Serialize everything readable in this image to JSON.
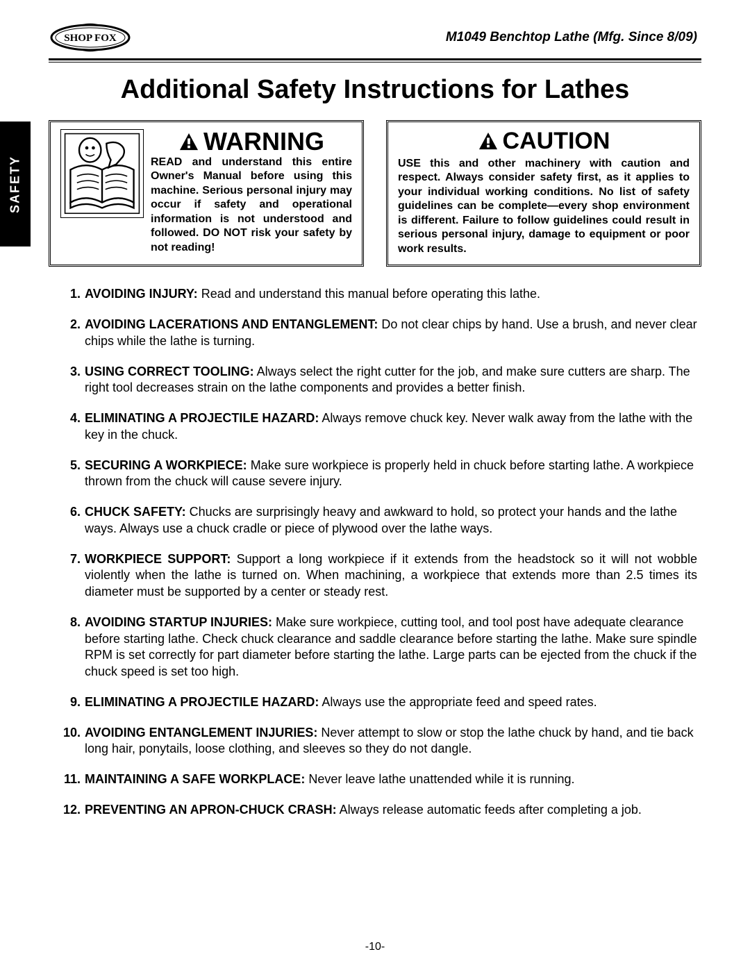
{
  "header": {
    "brand": "SHOP FOX",
    "product_line": "M1049 Benchtop Lathe (Mfg. Since 8/09)"
  },
  "side_tab": "SAFETY",
  "title": "Additional Safety Instructions for Lathes",
  "warning_box": {
    "heading": "WARNING",
    "body": "READ and understand this entire Owner's Manual before using this machine. Serious personal injury may occur if safety and operational information is not understood and followed. DO NOT risk your safety by not reading!"
  },
  "caution_box": {
    "heading": "CAUTION",
    "body": "USE this and other machinery with caution and respect. Always consider safety first, as it applies to your individual working conditions. No list of safety guidelines can be complete—every shop environment is different. Failure to follow guidelines could result in serious personal injury, damage to equipment or poor work results."
  },
  "list": [
    {
      "lead": "AVOIDING INJURY:",
      "text": " Read and understand this manual before operating this lathe.",
      "justify": false
    },
    {
      "lead": "AVOIDING LACERATIONS AND ENTANGLEMENT:",
      "text": " Do not clear chips by hand. Use a brush, and never clear chips while the lathe is turning.",
      "justify": false
    },
    {
      "lead": "USING CORRECT TOOLING:",
      "text": " Always select the right cutter for the job, and make sure cutters are sharp. The right tool decreases strain on the lathe components and provides a better finish.",
      "justify": false
    },
    {
      "lead": "ELIMINATING A PROJECTILE HAZARD:",
      "text": " Always remove chuck key. Never walk away from the lathe with the key in the chuck.",
      "justify": false
    },
    {
      "lead": "SECURING A WORKPIECE:",
      "text": " Make sure workpiece is properly held in chuck before starting lathe. A workpiece thrown from the chuck will cause severe injury.",
      "justify": false
    },
    {
      "lead": "CHUCK SAFETY:",
      "text": " Chucks are surprisingly heavy and awkward to hold, so protect your hands and the lathe ways. Always use a chuck cradle or piece of plywood over the lathe ways.",
      "justify": false
    },
    {
      "lead": "WORKPIECE SUPPORT:",
      "text": " Support a long workpiece if it extends from the headstock so it will not wobble violently when the lathe is turned on.  When machining, a workpiece that extends more than 2.5 times its diameter must be supported by a center or steady rest.",
      "justify": true
    },
    {
      "lead": "AVOIDING STARTUP INJURIES:",
      "text": " Make sure workpiece, cutting tool, and tool post have adequate clearance before starting lathe. Check chuck clearance and saddle clearance before starting the lathe. Make sure spindle RPM is set correctly for part diameter before starting the lathe. Large parts can be ejected from the chuck if the chuck speed is set too high.",
      "justify": false
    },
    {
      "lead": "ELIMINATING A PROJECTILE HAZARD:",
      "text": " Always use the appropriate feed and speed rates.",
      "justify": false
    },
    {
      "lead": "AVOIDING ENTANGLEMENT INJURIES:",
      "text": " Never attempt to slow or stop the lathe chuck by hand, and tie back long hair, ponytails, loose clothing, and sleeves so they do not dangle.",
      "justify": false
    },
    {
      "lead": "MAINTAINING A SAFE WORKPLACE:",
      "text": " Never leave lathe unattended while it is running.",
      "justify": false
    },
    {
      "lead": "PREVENTING AN APRON-CHUCK CRASH:",
      "text": " Always release automatic feeds after completing a job.",
      "justify": false
    }
  ],
  "page_number": "-10-",
  "colors": {
    "text": "#000000",
    "background": "#ffffff",
    "tab_bg": "#000000",
    "tab_text": "#ffffff"
  }
}
